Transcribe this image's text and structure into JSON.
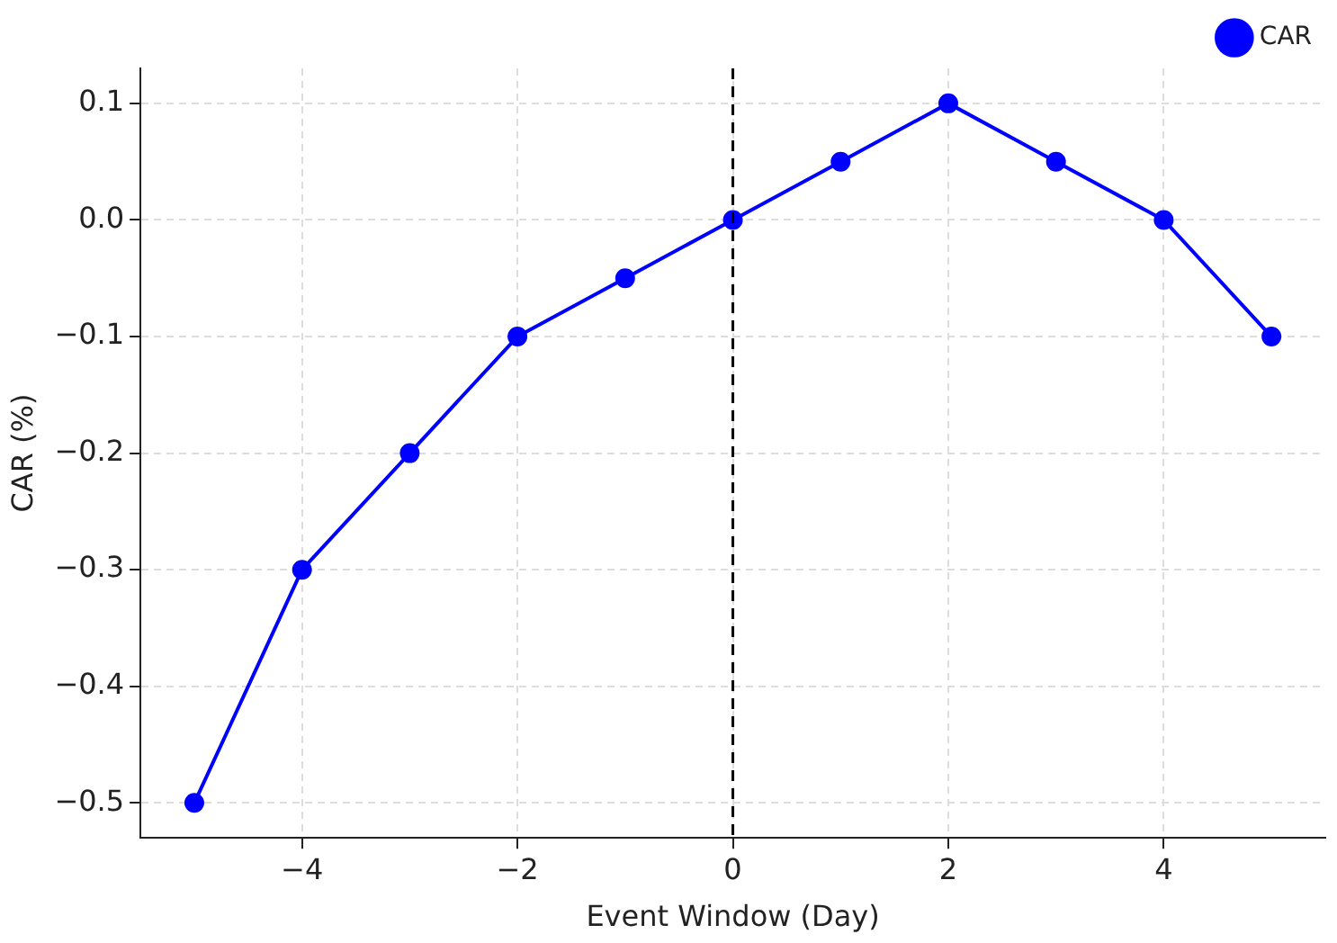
{
  "chart_data": {
    "type": "line",
    "xlabel": "Event Window (Day)",
    "ylabel": "CAR (%)",
    "x": [
      -5,
      -4,
      -3,
      -2,
      -1,
      0,
      1,
      2,
      3,
      4,
      5
    ],
    "series": [
      {
        "name": "CAR",
        "color": "#0000ff",
        "values": [
          -0.5,
          -0.3,
          -0.2,
          -0.1,
          -0.05,
          0,
          0.05,
          0.1,
          0.05,
          0,
          -0.1
        ]
      }
    ],
    "xlim": [
      -5.5,
      5.5
    ],
    "xticks": [
      {
        "value": -4,
        "label": "−4"
      },
      {
        "value": -2,
        "label": "−2"
      },
      0,
      2,
      4
    ],
    "ylim": [
      -0.53,
      0.13
    ],
    "yticks": [
      {
        "value": -0.5,
        "label": "−0.5"
      },
      {
        "value": -0.4,
        "label": "−0.4"
      },
      {
        "value": -0.3,
        "label": "−0.3"
      },
      {
        "value": -0.2,
        "label": "−0.2"
      },
      {
        "value": -0.1,
        "label": "−0.1"
      },
      {
        "value": 0,
        "label": "0.0"
      },
      {
        "value": 0.1,
        "label": "0.1"
      }
    ],
    "ref_lines": [
      {
        "axis": "x",
        "value": 0,
        "color": "#000000",
        "line_style": "dashed"
      }
    ],
    "grid": true,
    "legend": "top right",
    "marker": "circle",
    "line_style": "solid"
  }
}
